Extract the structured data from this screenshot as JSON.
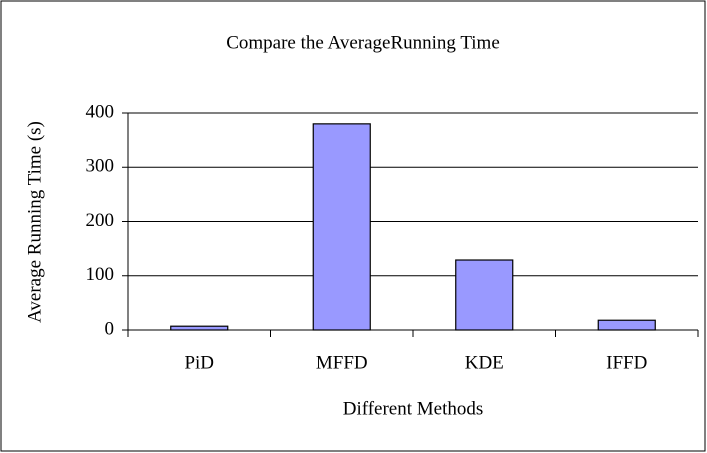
{
  "chart_data": {
    "type": "bar",
    "title": "Compare the AverageRunning Time",
    "x_label": "Different Methods",
    "y_label": "Average Running Time (s)",
    "categories": [
      "PiD",
      "MFFD",
      "KDE",
      "IFFD"
    ],
    "values": [
      7,
      380,
      129,
      18
    ],
    "color": "#9999ff",
    "ylim": [
      0,
      400
    ],
    "yticks": [
      0,
      100,
      200,
      300,
      400
    ],
    "grid": true
  }
}
